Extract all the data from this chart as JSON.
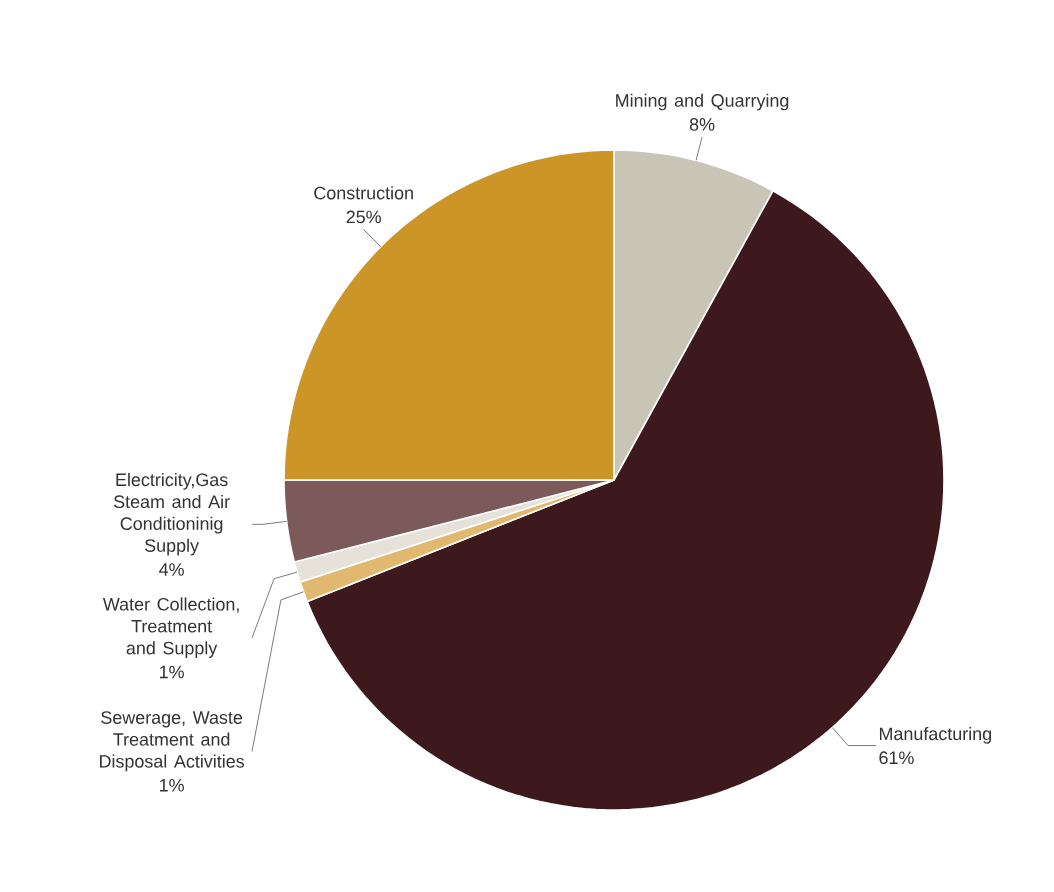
{
  "chart_data": {
    "type": "pie",
    "categories": [
      "Mining and Quarrying",
      "Manufacturing",
      "Sewerage, Waste Treatment and Disposal Activities",
      "Water Collection, Treatment and Supply",
      "Electricity,Gas Steam and Air Conditioninig Supply",
      "Construction"
    ],
    "values": [
      8,
      61,
      1,
      1,
      4,
      25
    ],
    "value_labels": [
      "8%",
      "61%",
      "1%",
      "1%",
      "4%",
      "25%"
    ],
    "colors": [
      "#c8c4b6",
      "#3d181c",
      "#e0b870",
      "#e6e2da",
      "#7d5a5a",
      "#cc9528"
    ]
  }
}
